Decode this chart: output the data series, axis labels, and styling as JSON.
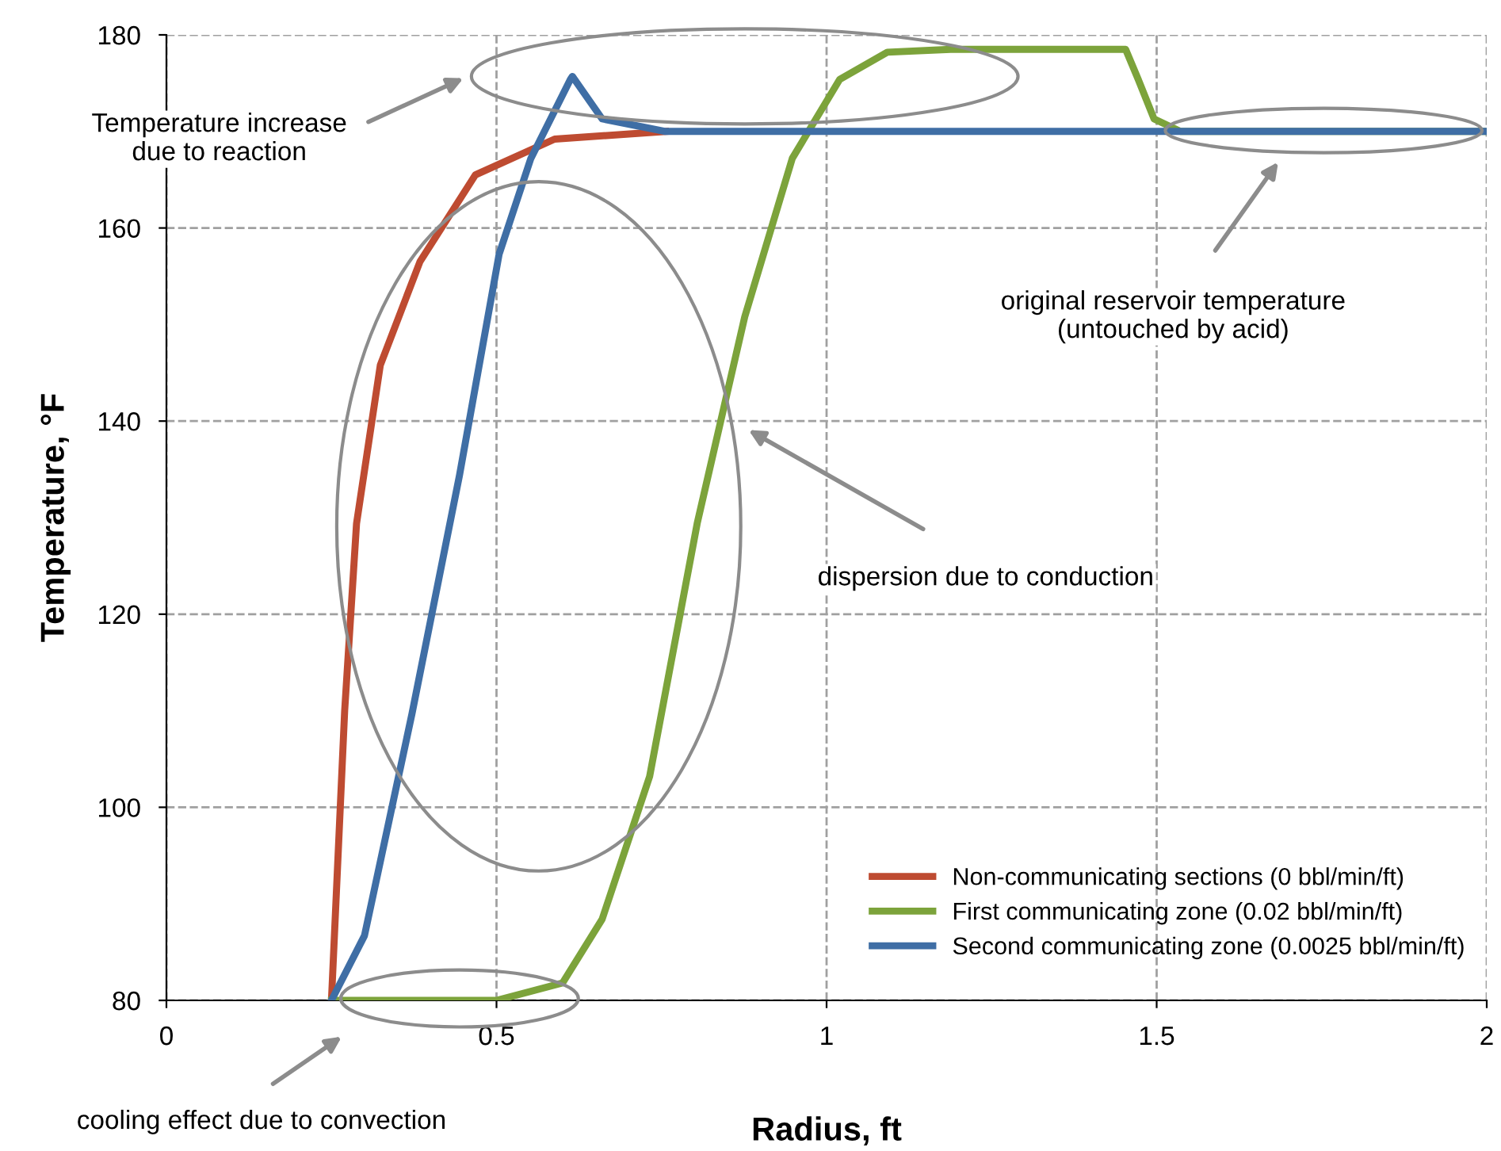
{
  "chart_data": {
    "type": "line",
    "xlabel": "Radius, ft",
    "ylabel": "Temperature, °F",
    "xlim": [
      0,
      2
    ],
    "ylim": [
      80,
      180
    ],
    "xticks": [
      0,
      0.5,
      1,
      1.5,
      2
    ],
    "yticks": [
      80,
      100,
      120,
      140,
      160,
      180
    ],
    "grid": true,
    "legend": "bottom right",
    "marker": "none",
    "line_style": "solid",
    "series": [
      {
        "name": "Non-communicating sections (0 bbl/min/ft)",
        "color": "#be4b31",
        "x": [
          0.25,
          0.27,
          0.288,
          0.324,
          0.384,
          0.468,
          0.588,
          0.756
        ],
        "values": [
          80,
          110,
          129.4,
          145.8,
          156.5,
          165.5,
          169.2,
          170
        ]
      },
      {
        "name": "First communicating zone (0.02 bbl/min/ft)",
        "color": "#7ca33b",
        "x": [
          0.25,
          0.5,
          0.6,
          0.66,
          0.732,
          0.804,
          0.876,
          0.948,
          1.02,
          1.092,
          1.188,
          1.453,
          1.472,
          1.496,
          1.536,
          2.0
        ],
        "values": [
          80,
          80,
          81.8,
          88.4,
          103.2,
          129.4,
          150.8,
          167.2,
          175.4,
          178.2,
          178.5,
          178.5,
          175.4,
          171.3,
          170,
          170
        ]
      },
      {
        "name": "Second communicating zone (0.0025 bbl/min/ft)",
        "color": "#3f6ea5",
        "x": [
          0.25,
          0.3,
          0.372,
          0.444,
          0.504,
          0.552,
          0.612,
          0.615,
          0.66,
          0.756,
          1.0,
          2.0
        ],
        "values": [
          80,
          86.7,
          109.7,
          134.4,
          157.3,
          167.2,
          175.4,
          175.7,
          171.3,
          170,
          170,
          170
        ]
      }
    ],
    "annotations": [
      "Temperature increase\ndue to reaction",
      "original reservoir temperature\n(untouched by acid)",
      "dispersion due to conduction",
      "cooling effect due to convection"
    ]
  }
}
